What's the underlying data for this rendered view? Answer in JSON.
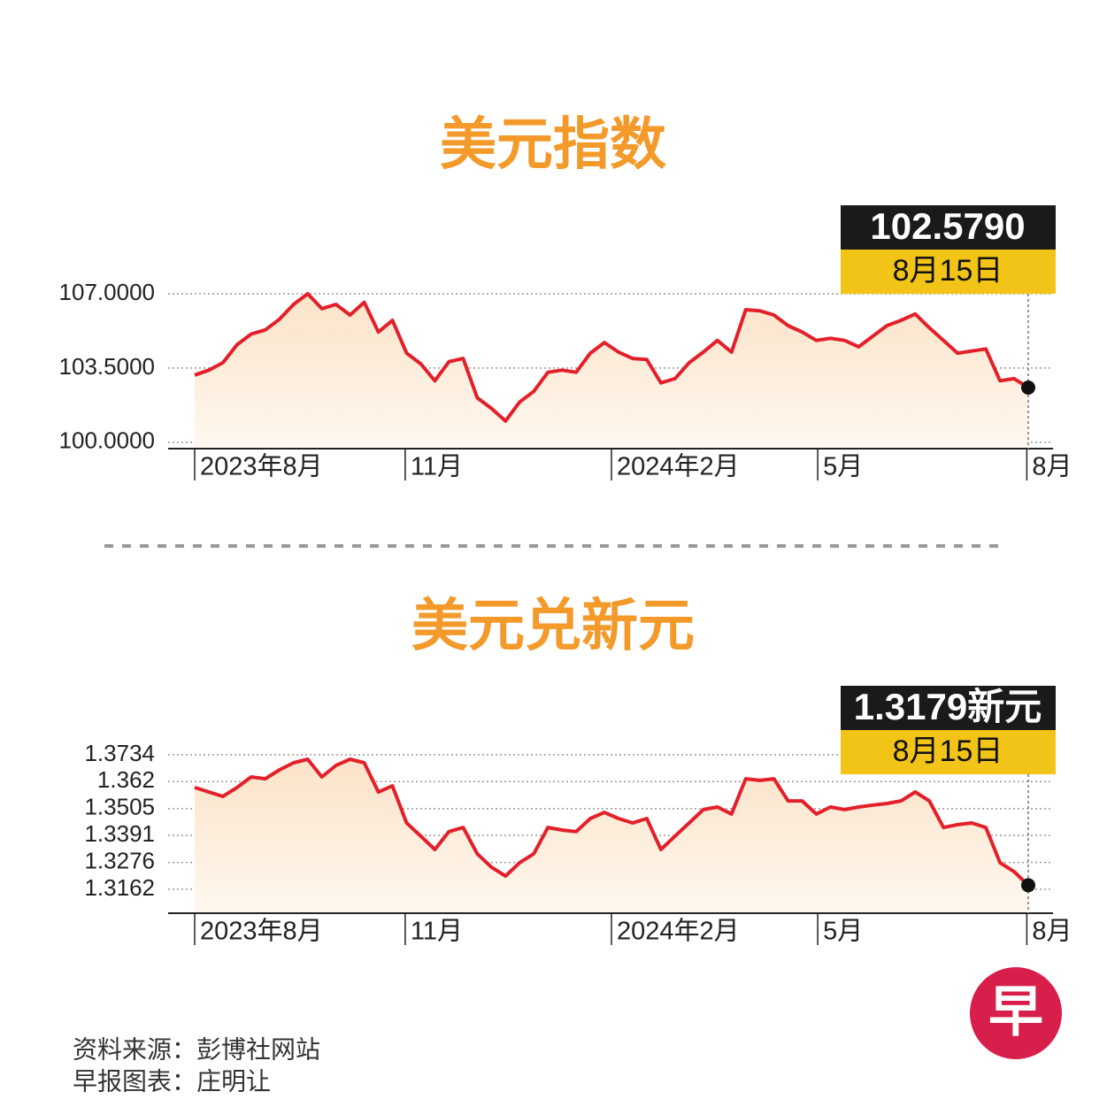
{
  "chart_data": [
    {
      "type": "line",
      "title": "美元指数",
      "color": "#e3202a",
      "values": [
        103.17,
        103.4,
        103.75,
        104.6,
        105.1,
        105.3,
        105.8,
        106.5,
        107.0,
        106.3,
        106.5,
        106.0,
        106.6,
        105.2,
        105.75,
        104.2,
        103.7,
        102.9,
        103.8,
        103.95,
        102.1,
        101.6,
        101.0,
        101.9,
        102.4,
        103.3,
        103.4,
        103.3,
        104.2,
        104.7,
        104.25,
        103.95,
        103.9,
        102.8,
        103.0,
        103.75,
        104.25,
        104.8,
        104.25,
        106.25,
        106.2,
        106.0,
        105.5,
        105.2,
        104.8,
        104.9,
        104.8,
        104.5,
        105.0,
        105.5,
        105.75,
        106.05,
        105.4,
        104.8,
        104.2,
        104.3,
        104.4,
        102.9,
        103.0,
        102.579
      ],
      "xlim": [
        0,
        59
      ],
      "xticks": [
        {
          "value": 0,
          "label": "2023年8月"
        },
        {
          "value": 14.9,
          "label": "11月"
        },
        {
          "value": 29.5,
          "label": "2024年2月"
        },
        {
          "value": 44.1,
          "label": "5月"
        },
        {
          "value": 58.9,
          "label": "8月"
        }
      ],
      "ylim": [
        99.7,
        107.0
      ],
      "yticks": [
        {
          "value": 100,
          "label": "100.0000"
        },
        {
          "value": 103.5,
          "label": "103.5000"
        },
        {
          "value": 107,
          "label": "107.0000"
        }
      ],
      "grid": true,
      "annotation": {
        "label": "102.5790",
        "date": "8月15日"
      }
    },
    {
      "type": "line",
      "title": "美元兑新元",
      "color": "#e3202a",
      "values": [
        1.3595,
        1.3576,
        1.3557,
        1.3595,
        1.364,
        1.3632,
        1.367,
        1.37,
        1.3715,
        1.364,
        1.3689,
        1.3715,
        1.37,
        1.3576,
        1.3602,
        1.3444,
        1.3388,
        1.3331,
        1.3407,
        1.3425,
        1.3313,
        1.3256,
        1.3218,
        1.3275,
        1.3313,
        1.3425,
        1.3414,
        1.3407,
        1.3463,
        1.3489,
        1.3463,
        1.3444,
        1.3463,
        1.3331,
        1.3388,
        1.3444,
        1.3501,
        1.3512,
        1.3482,
        1.3632,
        1.3625,
        1.3632,
        1.3538,
        1.3538,
        1.3482,
        1.3512,
        1.3501,
        1.3512,
        1.352,
        1.3527,
        1.3538,
        1.3576,
        1.3538,
        1.3425,
        1.3437,
        1.3444,
        1.3425,
        1.3275,
        1.3237,
        1.3179
      ],
      "xlim": [
        0,
        59
      ],
      "xticks": [
        {
          "value": 0,
          "label": "2023年8月"
        },
        {
          "value": 14.9,
          "label": "11月"
        },
        {
          "value": 29.5,
          "label": "2024年2月"
        },
        {
          "value": 44.1,
          "label": "5月"
        },
        {
          "value": 58.9,
          "label": "8月"
        }
      ],
      "ylim": [
        1.306,
        1.3734
      ],
      "yticks": [
        1.3162,
        1.3276,
        1.3391,
        1.3505,
        1.362,
        1.3734
      ],
      "grid": true,
      "annotation": {
        "label": "1.3179新元",
        "date": "8月15日"
      }
    }
  ],
  "source": "资料来源：彭博社网站",
  "credit": "早报图表：庄明让",
  "logo": "早"
}
